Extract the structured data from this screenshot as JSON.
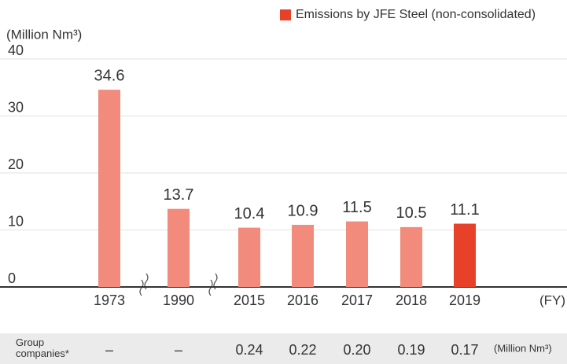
{
  "chart_data": {
    "type": "bar",
    "y_label": "(Million Nm³)",
    "x_unit": "(FY)",
    "legend": {
      "label": "Emissions by JFE Steel (non-consolidated)",
      "color": "#e8412a"
    },
    "categories": [
      "1973",
      "1990",
      "2015",
      "2016",
      "2017",
      "2018",
      "2019"
    ],
    "values": [
      34.6,
      13.7,
      10.4,
      10.9,
      11.5,
      10.5,
      11.1
    ],
    "colors": [
      "#f28b7b",
      "#f28b7b",
      "#f28b7b",
      "#f28b7b",
      "#f28b7b",
      "#f28b7b",
      "#e8412a"
    ],
    "ylim": [
      0,
      40
    ],
    "yticks": [
      0,
      10,
      20,
      30,
      40
    ],
    "grid": true,
    "group_companies": {
      "label": "Group companies*",
      "values": [
        null,
        null,
        0.24,
        0.22,
        0.2,
        0.19,
        0.17
      ],
      "value_labels": [
        "–",
        "–",
        "0.24",
        "0.22",
        "0.20",
        "0.19",
        "0.17"
      ],
      "unit": "(Million Nm³)"
    }
  }
}
